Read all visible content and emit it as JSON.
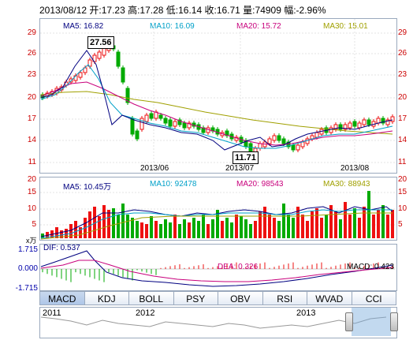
{
  "header": {
    "summary": "2013/08/12 开:17.23 高:17.28 低:16.14 收:16.71 量:74909 幅:-2.96%"
  },
  "price_panel": {
    "ma5": "MA5: 16.82",
    "ma10": "MA10: 16.09",
    "ma20": "MA20: 15.72",
    "ma30": "MA30: 15.01",
    "y_ticks": [
      "29",
      "26",
      "23",
      "20",
      "17",
      "14",
      "11"
    ],
    "x_ticks": [
      "2013/06",
      "2013/07",
      "2013/08"
    ],
    "high_callout": "27.56",
    "low_callout": "11.71",
    "colors": {
      "ma5": "#000080",
      "ma10": "#00a0c8",
      "ma20": "#c8007c",
      "ma30": "#a0a000",
      "up": "#ee1111",
      "down": "#00aa00"
    }
  },
  "volume_panel": {
    "ma5": "MA5: 10.45万",
    "ma10": "MA10: 92478",
    "ma20": "MA20: 98543",
    "ma30": "MA30: 88943",
    "y_ticks": [
      "20",
      "15",
      "10",
      "5"
    ],
    "unit": "x万"
  },
  "macd_panel": {
    "dif": "DIF: 0.537",
    "dea": "DEA: 0.326",
    "macd": "MACD: 0.423",
    "y_ticks": [
      "1.715",
      "0.000",
      "-1.715"
    ]
  },
  "tabs": [
    "MACD",
    "KDJ",
    "BOLL",
    "PSY",
    "OBV",
    "RSI",
    "WVAD",
    "CCI"
  ],
  "navigator": {
    "years": [
      "2011",
      "2012",
      "2013"
    ]
  }
}
